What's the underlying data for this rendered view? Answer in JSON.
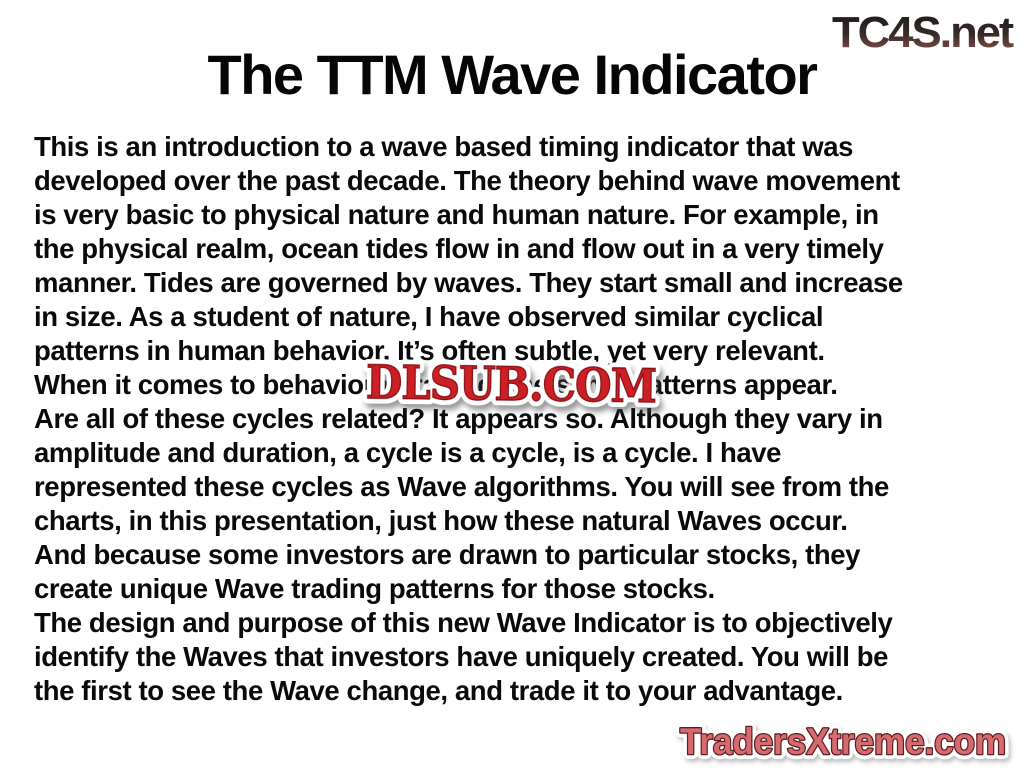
{
  "slide": {
    "title": "The TTM Wave Indicator",
    "body_lines": [
      "This is an introduction to a wave based timing indicator that was",
      "developed over the past decade. The theory behind wave movement",
      "is very basic to physical nature and human nature. For example, in",
      "the physical realm, ocean tides flow in and flow out in a very timely",
      "manner. Tides are governed by waves. They start small and increase",
      "in size. As a student of nature, I have observed similar cyclical",
      "patterns in human behavior. It’s often subtle, yet very relevant.",
      "When it comes to behavioral trading, the same patterns appear.",
      "Are all of these cycles related? It appears so. Although they vary in",
      "amplitude and duration, a cycle is a cycle, is a cycle. I have",
      "represented these cycles as Wave algorithms. You will see from the",
      "charts, in this presentation, just how these natural Waves occur.",
      "And because some investors are drawn to particular stocks, they",
      "create unique Wave trading patterns for those stocks.",
      "The design and purpose of this new Wave Indicator is to objectively",
      "identify the Waves that investors have uniquely created. You will be",
      "the first to see the Wave change, and trade it to your advantage."
    ]
  },
  "watermarks": {
    "tc4s": {
      "text": "TC4S.net",
      "color_top": "#161616",
      "color_bottom": "#9a5b52"
    },
    "dlsub": {
      "text": "DLSUB.COM",
      "fill_color": "#cc1f26",
      "edge_color": "#8e1116",
      "outline_color": "#ffffff"
    },
    "tradersxtreme": {
      "text": "TradersXtreme.com",
      "fill_color": "#d56b6f",
      "edge_color": "#5f1d22",
      "outline_color": "#ffffff"
    }
  }
}
